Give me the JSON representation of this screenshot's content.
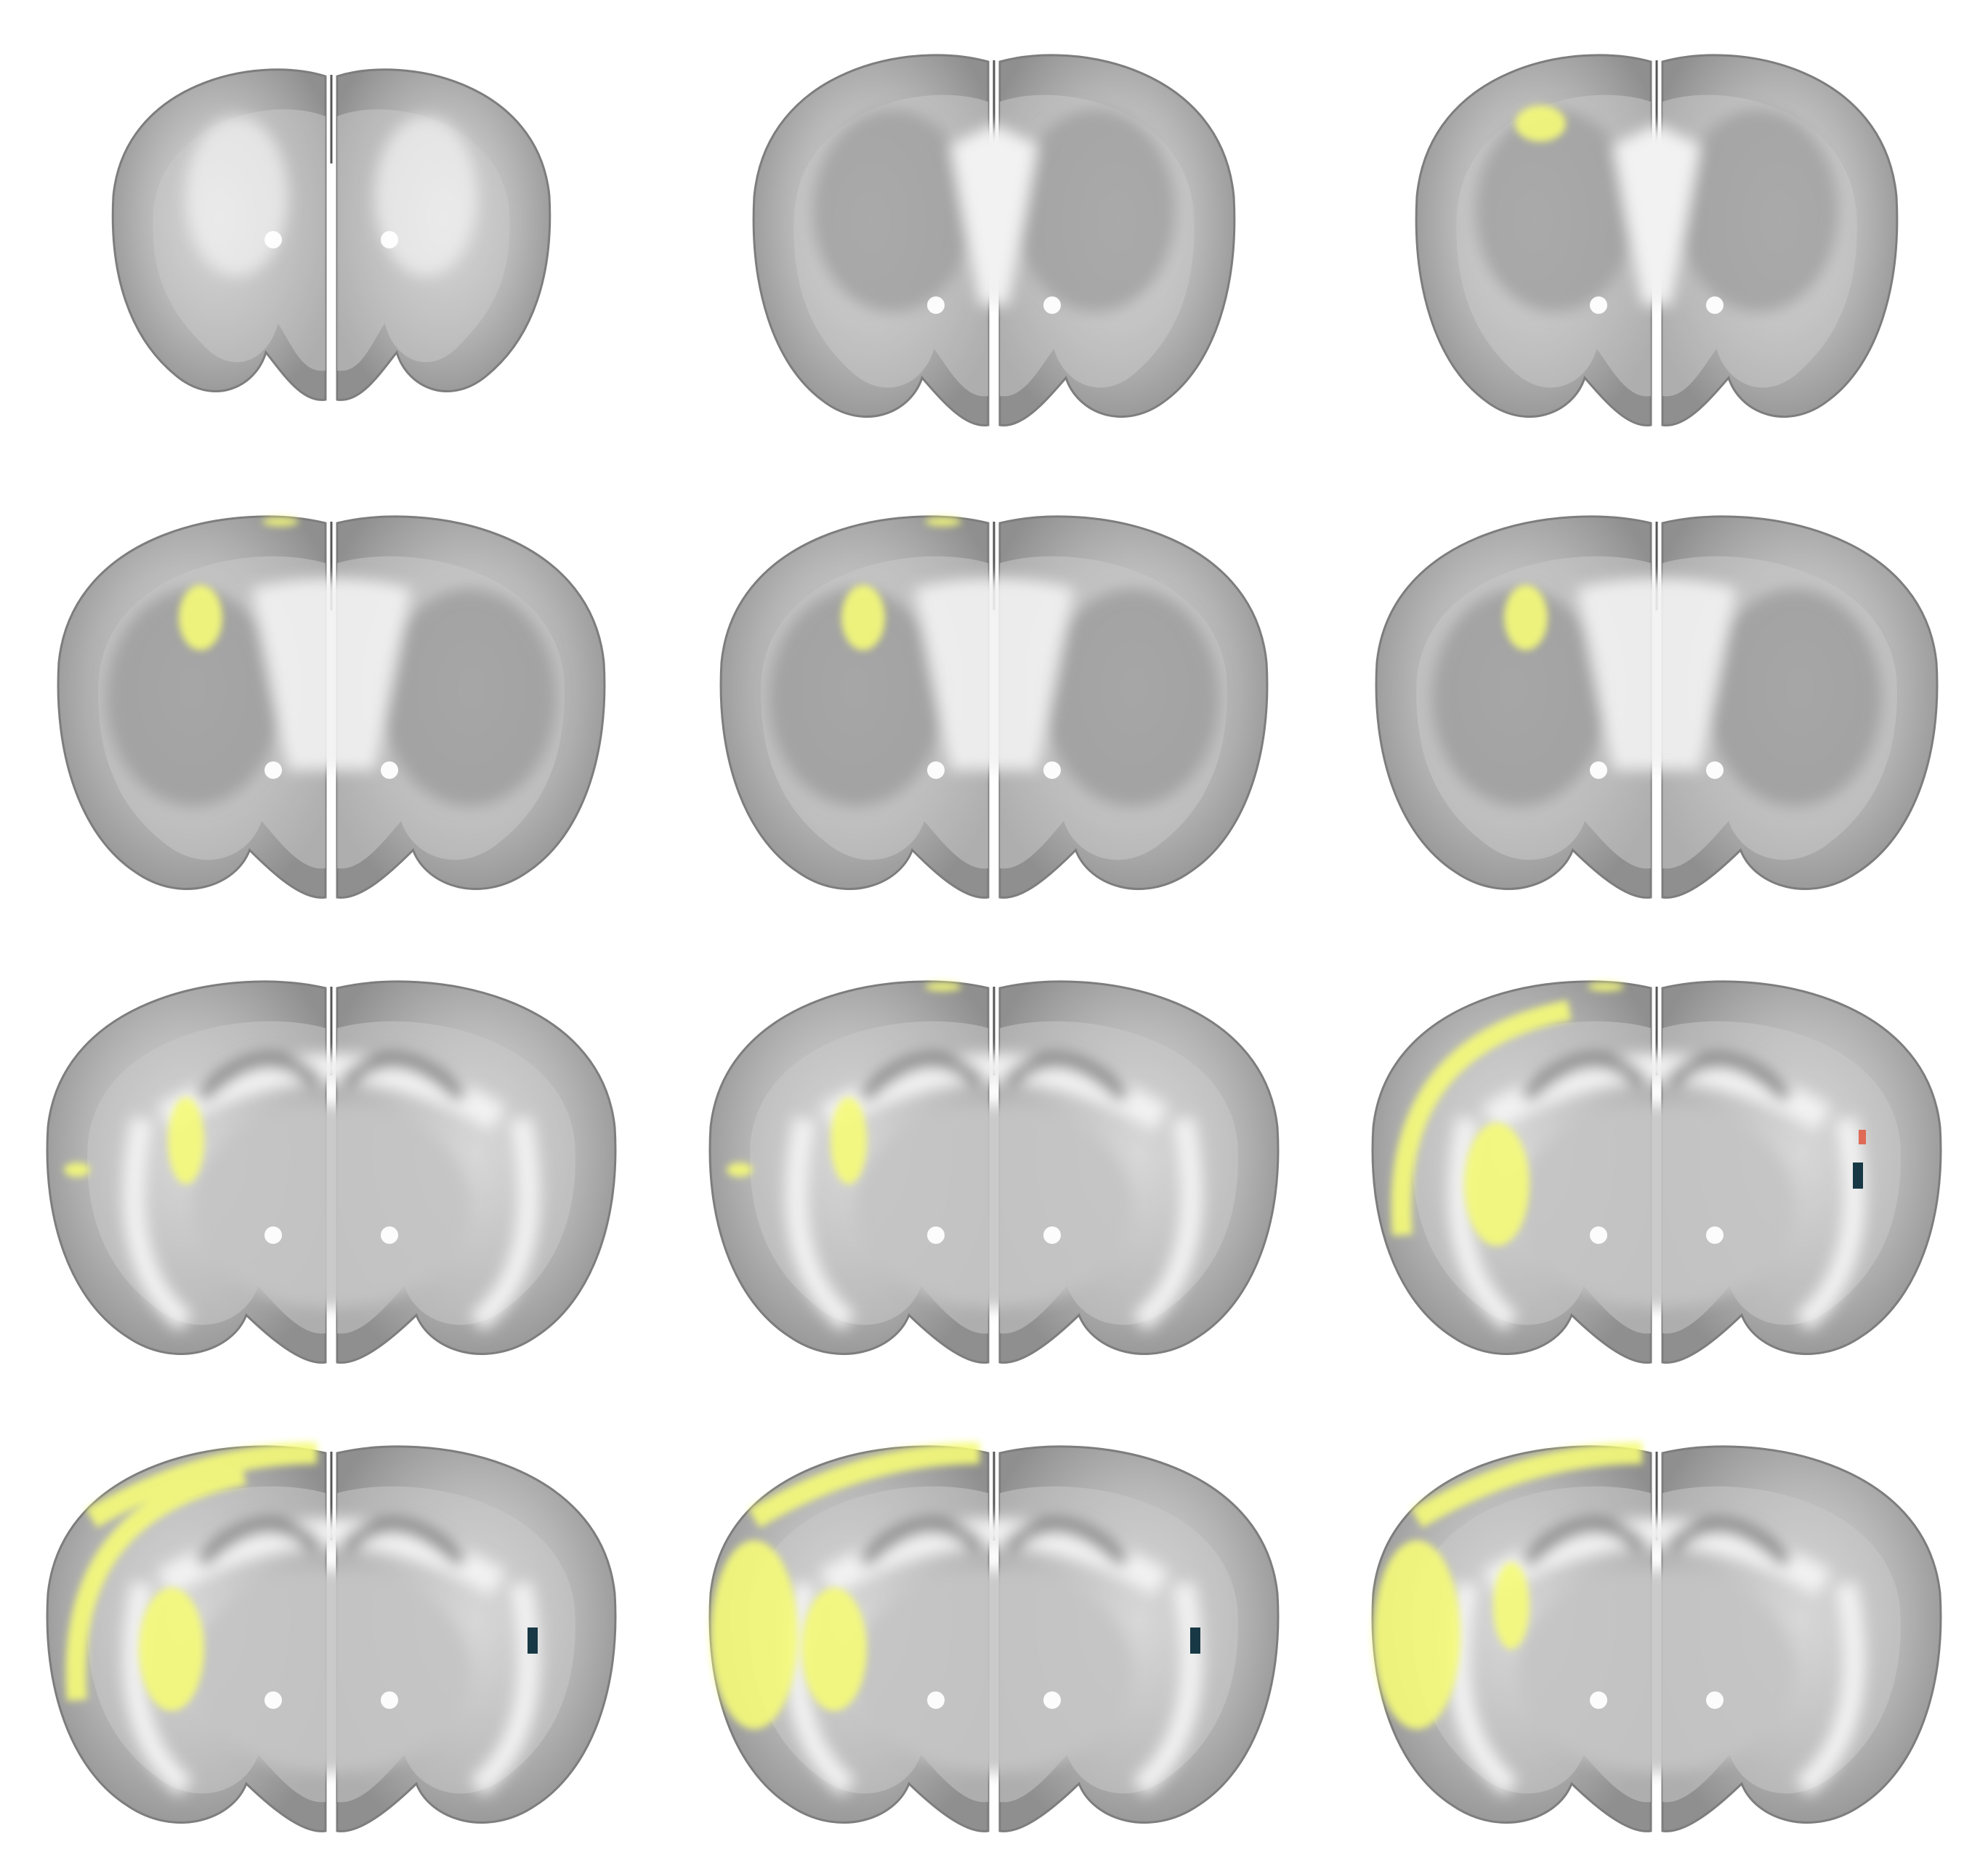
{
  "figure": {
    "colors": {
      "background": "#ffffff",
      "tissue_dark": "#8f8f8f",
      "tissue_mid": "#b4b4b4",
      "tissue_light": "#e9e9e9",
      "white_matter": "#f2f2f2",
      "signal_yellow": "#f5fb78",
      "marker_dark": "#173844",
      "marker_red": "#e06a55"
    },
    "panels": [
      {
        "name": "slice-1",
        "shape": "frontal",
        "signal": [],
        "markers": []
      },
      {
        "name": "slice-2",
        "shape": "striatal",
        "signal": [],
        "markers": []
      },
      {
        "name": "slice-3",
        "shape": "striatal",
        "signal": [
          "top-left-cortex"
        ],
        "markers": []
      },
      {
        "name": "slice-4",
        "shape": "septal",
        "signal": [
          "top-edge",
          "left-striatum-edge"
        ],
        "markers": []
      },
      {
        "name": "slice-5",
        "shape": "septal",
        "signal": [
          "top-edge",
          "left-striatum-edge"
        ],
        "markers": []
      },
      {
        "name": "slice-6",
        "shape": "thalamic",
        "signal": [
          "left-striatum-edge"
        ],
        "markers": []
      },
      {
        "name": "slice-7",
        "shape": "hippocampal",
        "signal": [
          "left-lateral",
          "left-internal"
        ],
        "markers": []
      },
      {
        "name": "slice-8",
        "shape": "hippocampal",
        "signal": [
          "left-lateral",
          "left-internal",
          "top-edge"
        ],
        "markers": []
      },
      {
        "name": "slice-9",
        "shape": "hippocampal",
        "signal": [
          "left-cortex-band",
          "left-internal-large",
          "top-edge"
        ],
        "markers": [
          "right-dark",
          "right-red"
        ]
      },
      {
        "name": "slice-10",
        "shape": "posterior",
        "signal": [
          "left-cortex-band",
          "left-internal-large",
          "top-cortex"
        ],
        "markers": [
          "right-dark"
        ]
      },
      {
        "name": "slice-11",
        "shape": "posterior",
        "signal": [
          "left-cortex-large",
          "left-internal-large",
          "top-cortex"
        ],
        "markers": [
          "right-dark"
        ]
      },
      {
        "name": "slice-12",
        "shape": "posterior",
        "signal": [
          "left-cortex-large",
          "top-cortex",
          "left-internal"
        ],
        "markers": []
      }
    ]
  }
}
